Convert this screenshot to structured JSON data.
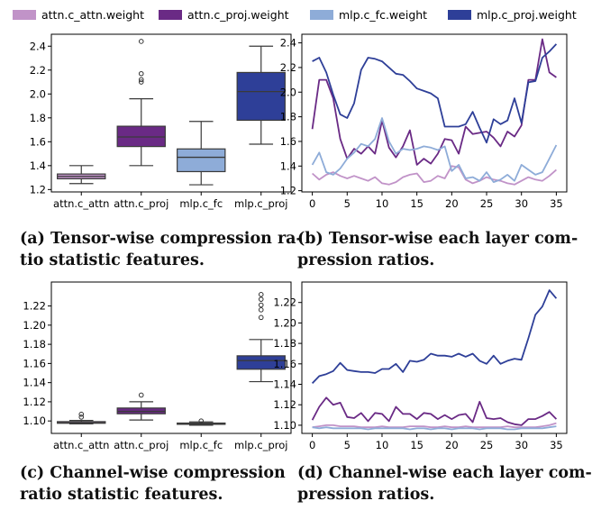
{
  "legend": [
    {
      "label": "attn.c_attn.weight",
      "color": "#c193c8"
    },
    {
      "label": "attn.c_proj.weight",
      "color": "#6a2a85"
    },
    {
      "label": "mlp.c_fc.weight",
      "color": "#8eacd8"
    },
    {
      "label": "mlp.c_proj.weight",
      "color": "#2e3f98"
    }
  ],
  "captions": {
    "a_line1": "(a) Tensor-wise compression ra-",
    "a_line2": "tio statistic features.",
    "b_line1": "(b) Tensor-wise each layer com-",
    "b_line2": "pression ratios.",
    "c_line1": "(c)  Channel-wise  compression",
    "c_line2": "ratio statistic features.",
    "d_line1": "(d) Channel-wise each layer com-",
    "d_line2": "pression ratios."
  },
  "chart_data": [
    {
      "type": "box",
      "panel": "a",
      "categories": [
        "attn.c_attn",
        "attn.c_proj",
        "mlp.c_fc",
        "mlp.c_proj"
      ],
      "colors": [
        "#c193c8",
        "#6a2a85",
        "#8eacd8",
        "#2e3f98"
      ],
      "ylim": [
        1.18,
        2.5
      ],
      "yticks": [
        1.2,
        1.4,
        1.6,
        1.8,
        2.0,
        2.2,
        2.4
      ],
      "ytick_labels": [
        "1.2",
        "1.4",
        "1.6",
        "1.8",
        "2.0",
        "2.2",
        "2.4"
      ],
      "boxes": [
        {
          "min": 1.25,
          "q1": 1.29,
          "median": 1.31,
          "q3": 1.33,
          "max": 1.4,
          "outliers": []
        },
        {
          "min": 1.4,
          "q1": 1.56,
          "median": 1.64,
          "q3": 1.73,
          "max": 1.96,
          "outliers": [
            2.1,
            2.12,
            2.17,
            2.44
          ]
        },
        {
          "min": 1.24,
          "q1": 1.35,
          "median": 1.47,
          "q3": 1.54,
          "max": 1.77,
          "outliers": []
        },
        {
          "min": 1.58,
          "q1": 1.78,
          "median": 2.02,
          "q3": 2.18,
          "max": 2.4,
          "outliers": []
        }
      ]
    },
    {
      "type": "line",
      "panel": "b",
      "xlim": [
        -1.5,
        36.5
      ],
      "ylim": [
        1.19,
        2.47
      ],
      "xticks": [
        0,
        5,
        10,
        15,
        20,
        25,
        30,
        35
      ],
      "xtick_labels": [
        "0",
        "5",
        "10",
        "15",
        "20",
        "25",
        "30",
        "35"
      ],
      "yticks": [
        1.2,
        1.4,
        1.6,
        1.8,
        2.0,
        2.2,
        2.4
      ],
      "ytick_labels": [
        "1.2",
        "1.4",
        "1.6",
        "1.8",
        "2.0",
        "2.2",
        "2.4"
      ],
      "series": [
        {
          "name": "attn.c_attn.weight",
          "color": "#c193c8",
          "values": [
            1.34,
            1.29,
            1.33,
            1.35,
            1.32,
            1.3,
            1.32,
            1.3,
            1.28,
            1.31,
            1.26,
            1.25,
            1.27,
            1.31,
            1.33,
            1.34,
            1.27,
            1.28,
            1.32,
            1.3,
            1.4,
            1.39,
            1.29,
            1.26,
            1.28,
            1.31,
            1.29,
            1.28,
            1.26,
            1.25,
            1.28,
            1.31,
            1.29,
            1.28,
            1.32,
            1.37
          ]
        },
        {
          "name": "attn.c_proj.weight",
          "color": "#6a2a85",
          "values": [
            1.7,
            2.1,
            2.1,
            1.95,
            1.62,
            1.46,
            1.54,
            1.5,
            1.56,
            1.5,
            1.77,
            1.55,
            1.47,
            1.56,
            1.69,
            1.41,
            1.46,
            1.42,
            1.5,
            1.62,
            1.61,
            1.5,
            1.72,
            1.66,
            1.67,
            1.68,
            1.63,
            1.56,
            1.68,
            1.64,
            1.73,
            2.1,
            2.1,
            2.43,
            2.16,
            2.12
          ]
        },
        {
          "name": "mlp.c_fc.weight",
          "color": "#8eacd8",
          "values": [
            1.41,
            1.51,
            1.35,
            1.33,
            1.38,
            1.46,
            1.51,
            1.58,
            1.56,
            1.62,
            1.79,
            1.6,
            1.5,
            1.54,
            1.53,
            1.54,
            1.56,
            1.55,
            1.53,
            1.56,
            1.36,
            1.41,
            1.3,
            1.31,
            1.28,
            1.35,
            1.27,
            1.29,
            1.33,
            1.28,
            1.41,
            1.37,
            1.33,
            1.35,
            1.46,
            1.57
          ]
        },
        {
          "name": "mlp.c_proj.weight",
          "color": "#2e3f98",
          "values": [
            2.25,
            2.28,
            2.16,
            1.98,
            1.82,
            1.79,
            1.91,
            2.18,
            2.28,
            2.27,
            2.25,
            2.2,
            2.15,
            2.14,
            2.09,
            2.03,
            2.01,
            1.99,
            1.95,
            1.72,
            1.72,
            1.72,
            1.74,
            1.84,
            1.71,
            1.59,
            1.78,
            1.74,
            1.77,
            1.95,
            1.75,
            2.08,
            2.09,
            2.28,
            2.33,
            2.39
          ]
        }
      ]
    },
    {
      "type": "box",
      "panel": "c",
      "categories": [
        "attn.c_attn",
        "attn.c_proj",
        "mlp.c_fc",
        "mlp.c_proj"
      ],
      "colors": [
        "#c193c8",
        "#6a2a85",
        "#8eacd8",
        "#2e3f98"
      ],
      "ylim": [
        1.087,
        1.245
      ],
      "yticks": [
        1.1,
        1.12,
        1.14,
        1.16,
        1.18,
        1.2,
        1.22
      ],
      "ytick_labels": [
        "1.10",
        "1.12",
        "1.14",
        "1.16",
        "1.18",
        "1.20",
        "1.22"
      ],
      "boxes": [
        {
          "min": 1.097,
          "q1": 1.0976,
          "median": 1.098,
          "q3": 1.0993,
          "max": 1.1005,
          "outliers": [
            1.104,
            1.107
          ]
        },
        {
          "min": 1.101,
          "q1": 1.1075,
          "median": 1.11,
          "q3": 1.1135,
          "max": 1.12,
          "outliers": [
            1.127
          ]
        },
        {
          "min": 1.0955,
          "q1": 1.0965,
          "median": 1.097,
          "q3": 1.0978,
          "max": 1.099,
          "outliers": [
            1.1
          ]
        },
        {
          "min": 1.141,
          "q1": 1.154,
          "median": 1.163,
          "q3": 1.168,
          "max": 1.185,
          "outliers": [
            1.208,
            1.216,
            1.221,
            1.227,
            1.232
          ]
        }
      ]
    },
    {
      "type": "line",
      "panel": "d",
      "xlim": [
        -1.5,
        36.5
      ],
      "ylim": [
        1.092,
        1.24
      ],
      "xticks": [
        0,
        5,
        10,
        15,
        20,
        25,
        30,
        35
      ],
      "xtick_labels": [
        "0",
        "5",
        "10",
        "15",
        "20",
        "25",
        "30",
        "35"
      ],
      "yticks": [
        1.1,
        1.12,
        1.14,
        1.16,
        1.18,
        1.2,
        1.22
      ],
      "ytick_labels": [
        "1.10",
        "1.12",
        "1.14",
        "1.16",
        "1.18",
        "1.20",
        "1.22"
      ],
      "series": [
        {
          "name": "attn.c_attn.weight",
          "color": "#c193c8",
          "values": [
            1.098,
            1.099,
            1.1,
            1.1,
            1.099,
            1.099,
            1.099,
            1.098,
            1.098,
            1.098,
            1.099,
            1.098,
            1.098,
            1.098,
            1.099,
            1.099,
            1.099,
            1.098,
            1.098,
            1.099,
            1.098,
            1.098,
            1.099,
            1.098,
            1.098,
            1.098,
            1.098,
            1.098,
            1.099,
            1.098,
            1.098,
            1.098,
            1.098,
            1.099,
            1.1,
            1.102
          ]
        },
        {
          "name": "attn.c_proj.weight",
          "color": "#6a2a85",
          "values": [
            1.105,
            1.118,
            1.127,
            1.12,
            1.122,
            1.108,
            1.107,
            1.112,
            1.104,
            1.112,
            1.111,
            1.104,
            1.118,
            1.111,
            1.111,
            1.106,
            1.112,
            1.111,
            1.106,
            1.11,
            1.106,
            1.11,
            1.111,
            1.103,
            1.123,
            1.107,
            1.106,
            1.107,
            1.103,
            1.101,
            1.1,
            1.106,
            1.106,
            1.109,
            1.113,
            1.106
          ]
        },
        {
          "name": "mlp.c_fc.weight",
          "color": "#8eacd8",
          "values": [
            1.098,
            1.097,
            1.098,
            1.097,
            1.097,
            1.097,
            1.097,
            1.097,
            1.096,
            1.097,
            1.097,
            1.097,
            1.097,
            1.097,
            1.096,
            1.097,
            1.097,
            1.096,
            1.097,
            1.097,
            1.096,
            1.097,
            1.097,
            1.097,
            1.096,
            1.097,
            1.097,
            1.097,
            1.096,
            1.096,
            1.097,
            1.097,
            1.097,
            1.097,
            1.098,
            1.099
          ]
        },
        {
          "name": "mlp.c_proj.weight",
          "color": "#2e3f98",
          "values": [
            1.141,
            1.148,
            1.15,
            1.153,
            1.161,
            1.154,
            1.153,
            1.152,
            1.152,
            1.151,
            1.155,
            1.155,
            1.16,
            1.152,
            1.163,
            1.162,
            1.164,
            1.17,
            1.168,
            1.168,
            1.167,
            1.17,
            1.167,
            1.17,
            1.163,
            1.16,
            1.168,
            1.16,
            1.163,
            1.165,
            1.164,
            1.185,
            1.208,
            1.216,
            1.232,
            1.224
          ]
        }
      ]
    }
  ]
}
